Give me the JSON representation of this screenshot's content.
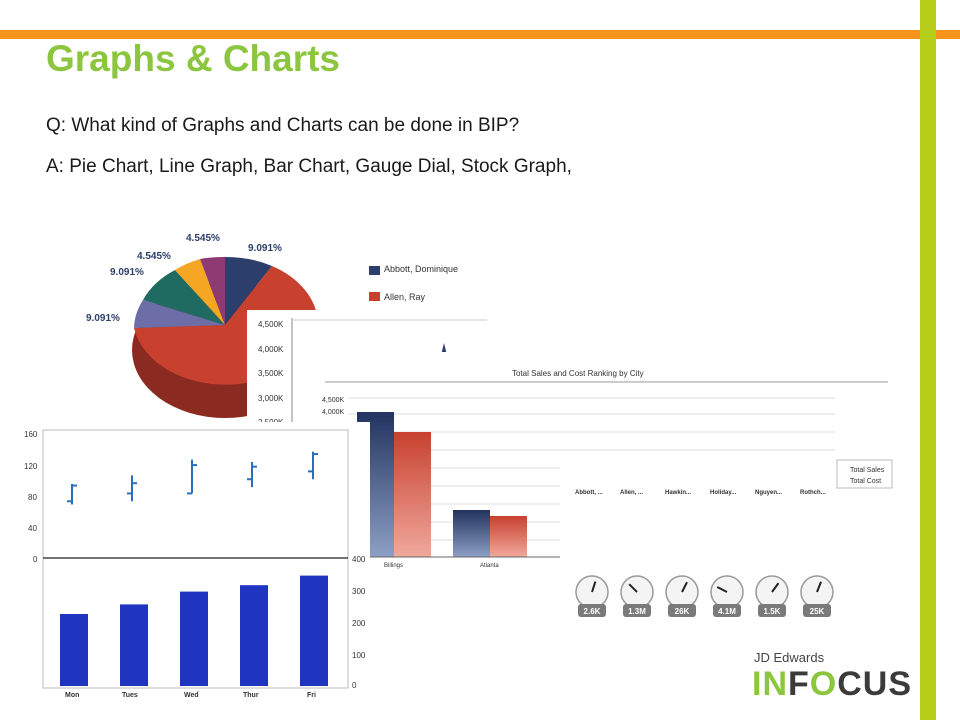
{
  "slide": {
    "title": "Graphs & Charts",
    "question": "Q: What kind of Graphs and Charts can be done in BIP?",
    "answer": "A:  Pie Chart, Line Graph, Bar Chart, Gauge Dial, Stock Graph,"
  },
  "logo": {
    "top": "JD Edwards",
    "in": "IN",
    "o": "O",
    "rest": "CUS",
    "f": "F"
  },
  "colors": {
    "orange": "#f7941d",
    "green": "#b5cc18",
    "title_green": "#8cc63f",
    "navy": "#2c3e6b",
    "red": "#c8412f",
    "blue_bar": "#1f35c0"
  },
  "chart_data": [
    {
      "type": "pie",
      "slice_labels": [
        "9.091%",
        "4.545%",
        "4.545%",
        "9.091%",
        "9.091%"
      ],
      "legend": [
        "Abbott, Dominique",
        "Allen, Ray"
      ]
    },
    {
      "type": "bar",
      "y_ticks": [
        "4,500K",
        "4,000K",
        "3,500K",
        "3,000K",
        "2,500K"
      ]
    },
    {
      "type": "bar",
      "title": "Total Sales and Cost Ranking by City",
      "y_ticks": [
        "4,500K",
        "4,000K"
      ],
      "categories": [
        "Billings",
        "Atlanta"
      ],
      "legend": [
        "Total Sales",
        "Total Cost"
      ]
    },
    {
      "type": "gauge",
      "labels": [
        "Abbott, ...",
        "Allen, ...",
        "Hawkin...",
        "Holiday...",
        "Nguyen...",
        "Rothch..."
      ],
      "values": [
        "2.6K",
        "1.3M",
        "26K",
        "4.1M",
        "1.5K",
        "25K"
      ],
      "needle_fraction": [
        0.6,
        0.25,
        0.65,
        0.15,
        0.7,
        0.62
      ]
    },
    {
      "type": "stock",
      "y_ticks": [
        "160",
        "120",
        "80",
        "40",
        "0"
      ],
      "ylim": [
        0,
        160
      ],
      "series": [
        {
          "low": 68,
          "high": 94,
          "open": 72,
          "close": 92
        },
        {
          "low": 72,
          "high": 105,
          "open": 82,
          "close": 95
        },
        {
          "low": 82,
          "high": 125,
          "open": 82,
          "close": 118
        },
        {
          "low": 90,
          "high": 122,
          "open": 100,
          "close": 116
        },
        {
          "low": 100,
          "high": 135,
          "open": 110,
          "close": 132
        }
      ]
    },
    {
      "type": "bar",
      "categories": [
        "Mon",
        "Tues",
        "Wed",
        "Thur",
        "Fri"
      ],
      "values": [
        225,
        255,
        295,
        315,
        345
      ],
      "y_ticks": [
        "400",
        "300",
        "200",
        "100",
        "0"
      ],
      "ylim": [
        0,
        400
      ]
    }
  ]
}
